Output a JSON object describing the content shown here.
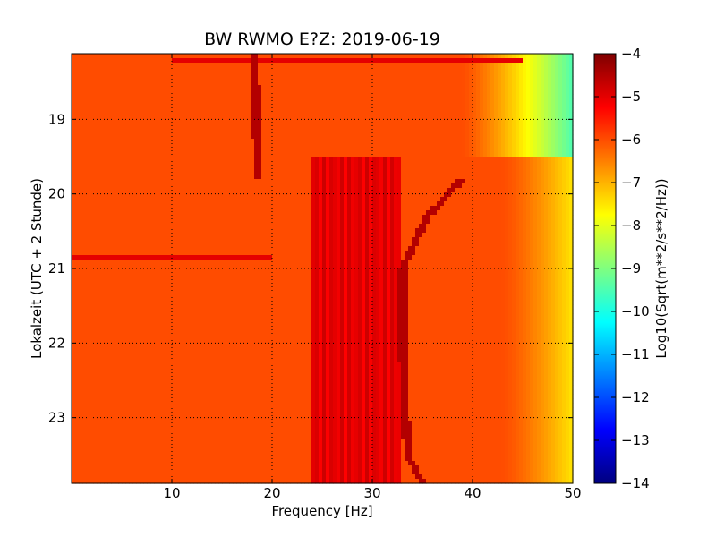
{
  "chart_data": {
    "type": "heatmap",
    "title": "BW RWMO E?Z: 2019-06-19",
    "xlabel": "Frequency [Hz]",
    "ylabel": "Lokalzeit (UTC + 2 Stunde)",
    "xlim": [
      0,
      50
    ],
    "ylim": [
      23.88,
      18.12
    ],
    "y_inverted": true,
    "xticks": [
      10,
      20,
      30,
      40,
      50
    ],
    "xtick_labels": [
      "10",
      "20",
      "30",
      "40",
      "50"
    ],
    "yticks": [
      19,
      20,
      21,
      22,
      23
    ],
    "ytick_labels": [
      "19",
      "20",
      "21",
      "22",
      "23"
    ],
    "grid": true,
    "colormap": "jet",
    "colorbar": {
      "label": "Log10(Sqrt(m**2/s**2/Hz))",
      "range": [
        -14,
        -4
      ],
      "ticks": [
        -4,
        -5,
        -6,
        -7,
        -8,
        -9,
        -10,
        -11,
        -12,
        -13,
        -14
      ],
      "tick_labels": [
        "−4",
        "−5",
        "−6",
        "−7",
        "−8",
        "−9",
        "−10",
        "−11",
        "−12",
        "−13",
        "−14"
      ]
    },
    "features": {
      "background_level": -6.0,
      "high_frequency_rolloff": [
        {
          "segment": "before 19.5",
          "start_hz": 39,
          "level_at_50hz": -9.5
        },
        {
          "segment": "after 19.5",
          "start_hz": 43,
          "level_at_50hz": -7.5
        }
      ],
      "band_transition_time": 19.5,
      "strong_band_hz": [
        24,
        33
      ],
      "strong_band_level": -5.0,
      "drifting_line_1": [
        [
          18.12,
          18.3
        ],
        [
          19.8,
          18.5
        ]
      ],
      "drifting_line_2": [
        [
          19.8,
          39.0
        ],
        [
          20.3,
          35.5
        ],
        [
          21.0,
          33.0
        ],
        [
          22.0,
          33.0
        ],
        [
          23.5,
          33.5
        ],
        [
          23.88,
          35.0
        ]
      ],
      "drifting_line_level": -4.5,
      "horizontal_streak_1": {
        "time": 18.2,
        "from_hz": 10,
        "to_hz": 45,
        "level": -5.0
      },
      "horizontal_streak_2": {
        "time": 20.85,
        "from_hz": 0,
        "to_hz": 20,
        "level": -5.0
      }
    }
  }
}
